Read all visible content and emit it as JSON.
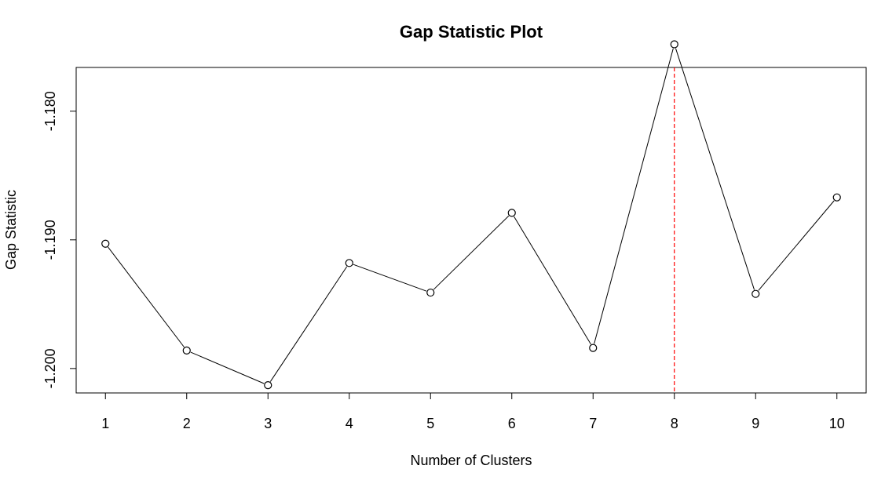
{
  "chart_data": {
    "type": "line",
    "title": "Gap Statistic Plot",
    "xlabel": "Number of Clusters",
    "ylabel": "Gap Statistic",
    "x": [
      1,
      2,
      3,
      4,
      5,
      6,
      7,
      8,
      9,
      10
    ],
    "x_tick_labels": [
      "1",
      "2",
      "3",
      "4",
      "5",
      "6",
      "7",
      "8",
      "9",
      "10"
    ],
    "y_ticks": [
      -1.18,
      -1.19,
      -1.2
    ],
    "y_tick_labels": [
      "-1.180",
      "-1.190",
      "-1.200"
    ],
    "xlim": [
      0.64,
      10.36
    ],
    "ylim": [
      -1.2019,
      -1.1766
    ],
    "series": [
      {
        "values": [
          -1.1903,
          -1.1986,
          -1.2013,
          -1.1918,
          -1.1941,
          -1.1879,
          -1.1984,
          -1.1748,
          -1.1942,
          -1.1867
        ],
        "line_color": "#000000",
        "marker": "open-circle"
      }
    ],
    "reference_line": {
      "orientation": "vertical",
      "x": 8,
      "color": "#ff0000",
      "style": "dashed"
    },
    "grid": false,
    "legend": "none"
  }
}
